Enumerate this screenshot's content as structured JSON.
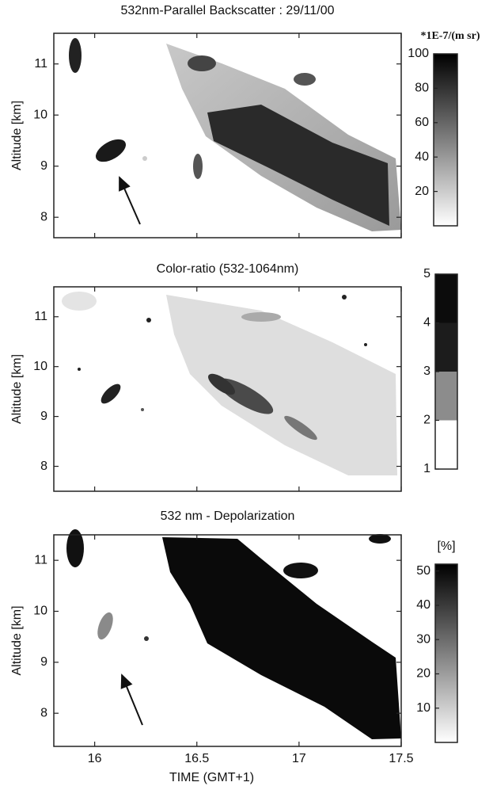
{
  "chart_data": [
    {
      "type": "heatmap",
      "title": "532nm-Parallel Backscatter : 29/11/00",
      "ylabel": "Altitude [km]",
      "xlim": [
        15.8,
        17.5
      ],
      "ylim": [
        7.6,
        11.6
      ],
      "yticks": [
        8,
        9,
        10,
        11
      ],
      "colorbar_title": "*1E-7/(m sr)",
      "clim": [
        0,
        100
      ],
      "cticks": [
        20,
        40,
        60,
        80,
        100
      ],
      "colormap": "continuous",
      "colors": [
        "#ffffff",
        "#000000"
      ]
    },
    {
      "type": "heatmap",
      "title": "Color-ratio (532-1064nm)",
      "ylabel": "Altitude [km]",
      "xlim": [
        15.8,
        17.5
      ],
      "ylim": [
        7.5,
        11.6
      ],
      "yticks": [
        8,
        9,
        10,
        11
      ],
      "clim": [
        1,
        5
      ],
      "cticks": [
        1,
        2,
        3,
        4,
        5
      ],
      "colormap": "discrete",
      "colors": [
        "#ffffff",
        "#8c8c8c",
        "#1c1c1c",
        "#0c0c0c"
      ]
    },
    {
      "type": "heatmap",
      "title": "532 nm - Depolarization",
      "ylabel": "Altitude [km]",
      "xlabel": "TIME   (GMT+1)",
      "xlim": [
        15.8,
        17.5
      ],
      "xticks": [
        16,
        16.5,
        17,
        17.5
      ],
      "ylim": [
        7.35,
        11.5
      ],
      "yticks": [
        8,
        9,
        10,
        11
      ],
      "colorbar_title": "[%]",
      "clim": [
        0,
        52
      ],
      "cticks": [
        10,
        20,
        30,
        40,
        50
      ],
      "colormap": "continuous",
      "colors": [
        "#ffffff",
        "#000000"
      ]
    }
  ]
}
